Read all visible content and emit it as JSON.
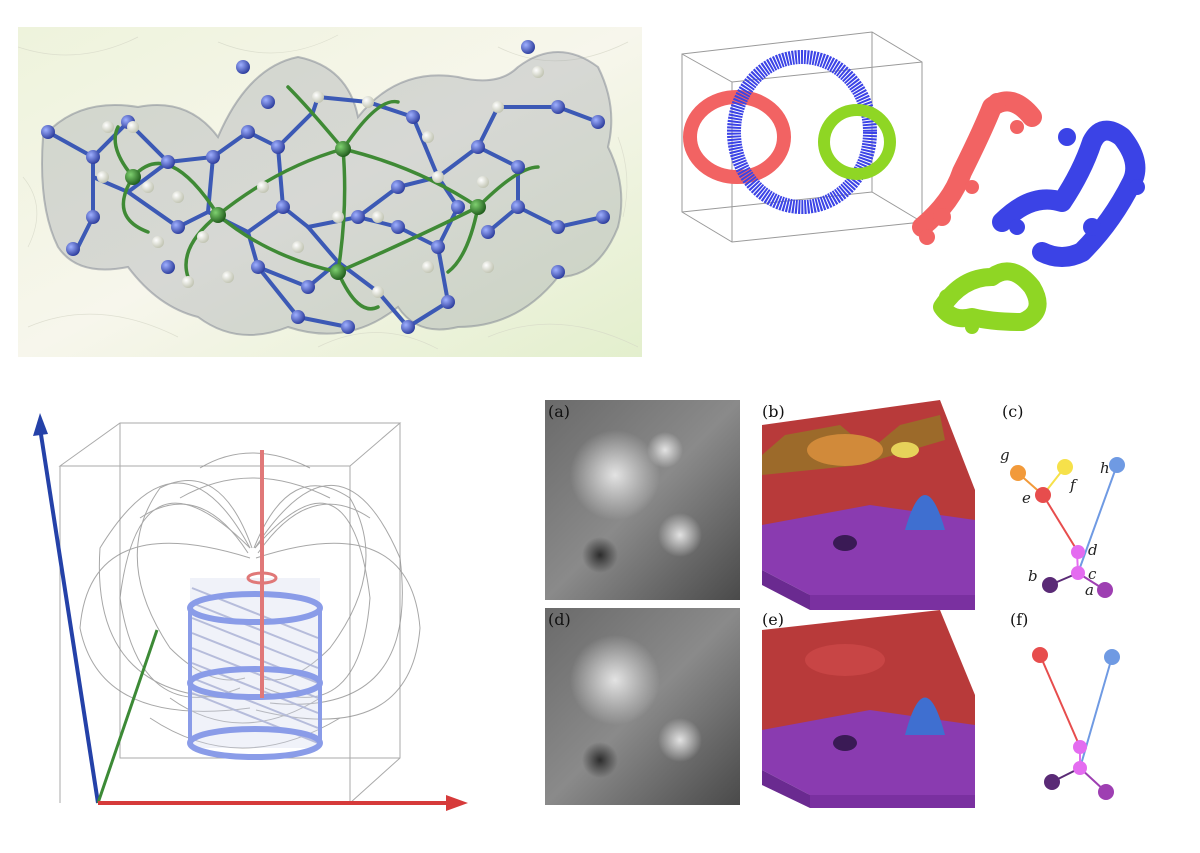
{
  "panel_labels": [
    "(a)",
    "(b)",
    "(c)",
    "(d)",
    "(e)",
    "(f)"
  ],
  "tree_nodes_c": [
    {
      "label": "h",
      "color": "#6f9ae3"
    },
    {
      "label": "g",
      "color": "#f29a3a"
    },
    {
      "label": "f",
      "color": "#f6e14a"
    },
    {
      "label": "e",
      "color": "#e74d4d"
    },
    {
      "label": "d",
      "color": "#e46cf0"
    },
    {
      "label": "c",
      "color": "#e46cf0"
    },
    {
      "label": "b",
      "color": "#5a2a76"
    },
    {
      "label": "a",
      "color": "#9e3fb2"
    }
  ],
  "colors": {
    "molecule_bond": "#3c59b5",
    "molecule_path": "#3f8a35",
    "ring_red": "#f26363",
    "ring_blue": "#3b43e6",
    "ring_green": "#8fd624",
    "axis_red": "#d63a3a",
    "axis_green": "#3c8a36",
    "axis_blue": "#2441a8",
    "coil_blue": "#8a9ce8"
  }
}
